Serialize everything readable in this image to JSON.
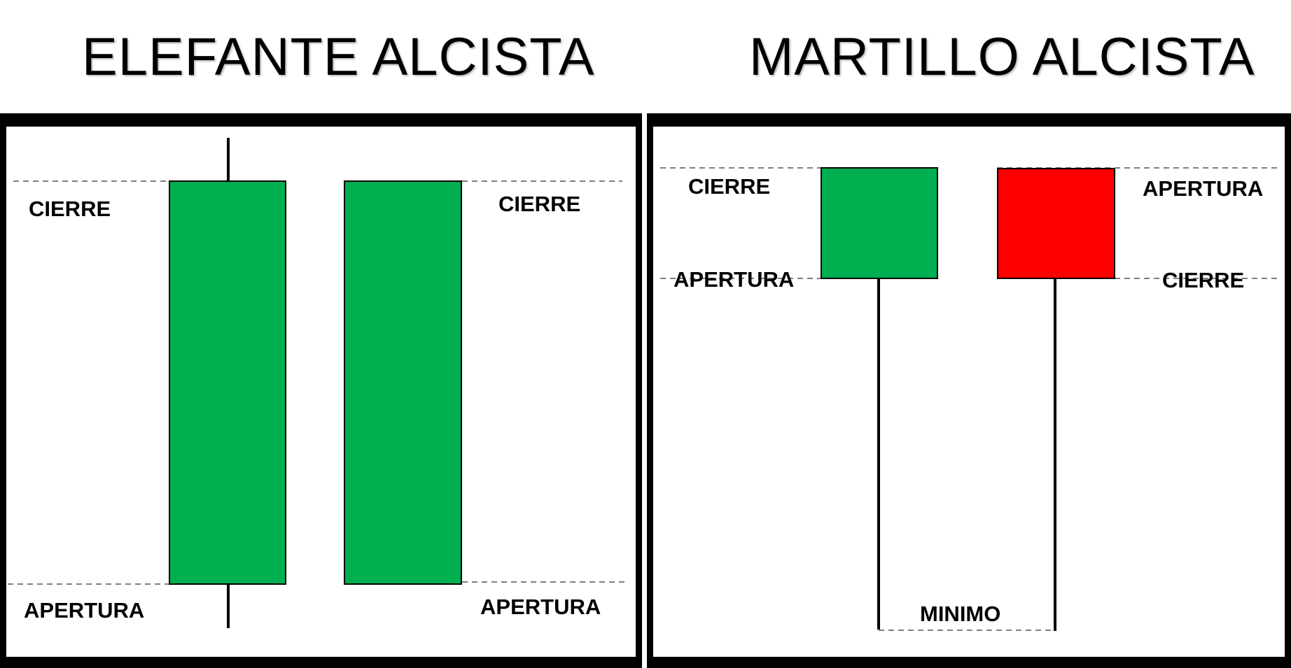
{
  "titles": {
    "left": "ELEFANTE ALCISTA",
    "right": "MARTILLO ALCISTA"
  },
  "elephant_panel": {
    "labels": {
      "close_left": "CIERRE",
      "open_left": "APERTURA",
      "close_right": "CIERRE",
      "open_right": "APERTURA"
    },
    "candles": [
      {
        "color": "#00AF50",
        "has_wicks": true
      },
      {
        "color": "#00AF50",
        "has_wicks": false
      }
    ]
  },
  "hammer_panel": {
    "labels": {
      "close_left": "CIERRE",
      "open_left": "APERTURA",
      "open_right": "APERTURA",
      "close_right": "CIERRE",
      "low": "MINIMO"
    },
    "candles": [
      {
        "color": "#00AF50",
        "kind": "bullish"
      },
      {
        "color": "#FF0000",
        "kind": "bearish"
      }
    ]
  },
  "colors": {
    "bullish": "#00AF50",
    "bearish": "#FF0000",
    "dashed_line": "#7f7f7f",
    "frame": "#000000"
  }
}
